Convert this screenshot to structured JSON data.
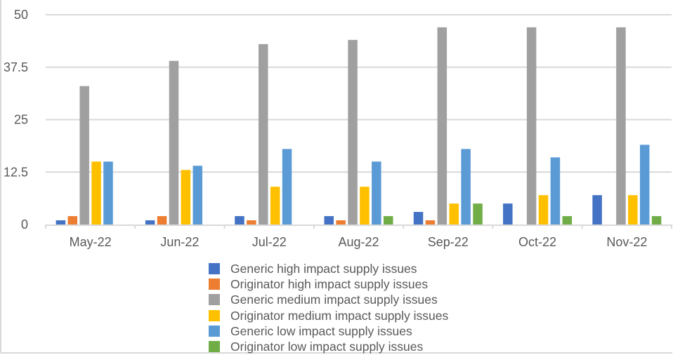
{
  "chart_data": {
    "type": "bar",
    "title": "",
    "xlabel": "",
    "ylabel": "",
    "ylim": [
      0,
      50
    ],
    "yticks": [
      "0",
      "12.5",
      "25",
      "37.5",
      "50"
    ],
    "ytick_values": [
      0,
      12.5,
      25,
      37.5,
      50
    ],
    "grid": true,
    "legend_position": "bottom",
    "categories": [
      "May-22",
      "Jun-22",
      "Jul-22",
      "Aug-22",
      "Sep-22",
      "Oct-22",
      "Nov-22"
    ],
    "series": [
      {
        "name": "Generic high impact supply issues",
        "color": "#4472C4",
        "values": [
          1,
          1,
          2,
          2,
          3,
          5,
          7
        ]
      },
      {
        "name": "Originator high impact supply issues",
        "color": "#ED7D31",
        "values": [
          2,
          2,
          1,
          1,
          1,
          0,
          0
        ]
      },
      {
        "name": "Generic medium impact supply issues",
        "color": "#A0A0A0",
        "values": [
          33,
          39,
          43,
          44,
          47,
          47,
          47
        ]
      },
      {
        "name": "Originator medium impact supply issues",
        "color": "#FFC000",
        "values": [
          15,
          13,
          9,
          9,
          5,
          7,
          7
        ]
      },
      {
        "name": "Generic low impact supply issues",
        "color": "#5B9BD5",
        "values": [
          15,
          14,
          18,
          15,
          18,
          16,
          19
        ]
      },
      {
        "name": "Originator low impact supply issues",
        "color": "#70AD47",
        "values": [
          0,
          0,
          0,
          2,
          5,
          2,
          2
        ]
      }
    ]
  }
}
